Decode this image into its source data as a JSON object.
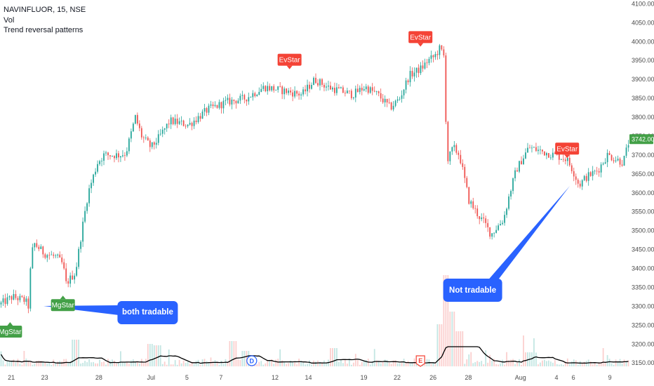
{
  "legend": {
    "symbol": "NAVINFLUOR, 15, NSE",
    "volume": "Vol",
    "indicator": "Trend reversal patterns"
  },
  "colors": {
    "up": "#26a69a",
    "down": "#ef5350",
    "mgstar": "#43a047",
    "evstar": "#f44336",
    "callout": "#2962ff",
    "price_label": "#43a047",
    "volume_ma": "#000000"
  },
  "chart_data": {
    "type": "candlestick",
    "y_ticks": [
      3150,
      3200,
      3250,
      3300,
      3350,
      3400,
      3450,
      3500,
      3550,
      3600,
      3650,
      3700,
      3750,
      3800,
      3850,
      3900,
      3950,
      4000,
      4050,
      4100
    ],
    "y_tick_labels": [
      "3150.00",
      "3200.00",
      "3250.00",
      "3300.00",
      "3350.00",
      "3400.00",
      "3450.00",
      "3500.00",
      "3550.00",
      "3600.00",
      "3650.00",
      "3700.00",
      "3750.00",
      "3800.00",
      "3850.00",
      "3900.00",
      "3950.00",
      "4000.00",
      "4050.00",
      "4100.00"
    ],
    "ylim": [
      3130,
      4110
    ],
    "x_labels": [
      {
        "label": "21",
        "t": 0.018
      },
      {
        "label": "23",
        "t": 0.071
      },
      {
        "label": "28",
        "t": 0.157
      },
      {
        "label": "Jul",
        "t": 0.24
      },
      {
        "label": "5",
        "t": 0.297
      },
      {
        "label": "7",
        "t": 0.351
      },
      {
        "label": "12",
        "t": 0.437
      },
      {
        "label": "14",
        "t": 0.49
      },
      {
        "label": "19",
        "t": 0.578
      },
      {
        "label": "22",
        "t": 0.631
      },
      {
        "label": "26",
        "t": 0.688
      },
      {
        "label": "28",
        "t": 0.744
      },
      {
        "label": "Aug",
        "t": 0.827
      },
      {
        "label": "4",
        "t": 0.884
      },
      {
        "label": "6",
        "t": 0.911
      },
      {
        "label": "9",
        "t": 0.969
      }
    ],
    "price_path": [
      [
        0,
        3305
      ],
      [
        0.02,
        3325
      ],
      [
        0.04,
        3315
      ],
      [
        0.045,
        3300
      ],
      [
        0.05,
        3440
      ],
      [
        0.055,
        3465
      ],
      [
        0.07,
        3440
      ],
      [
        0.09,
        3430
      ],
      [
        0.1,
        3410
      ],
      [
        0.105,
        3360
      ],
      [
        0.12,
        3390
      ],
      [
        0.13,
        3500
      ],
      [
        0.14,
        3600
      ],
      [
        0.155,
        3680
      ],
      [
        0.165,
        3700
      ],
      [
        0.19,
        3700
      ],
      [
        0.2,
        3705
      ],
      [
        0.215,
        3800
      ],
      [
        0.225,
        3750
      ],
      [
        0.24,
        3720
      ],
      [
        0.25,
        3740
      ],
      [
        0.27,
        3790
      ],
      [
        0.3,
        3780
      ],
      [
        0.33,
        3820
      ],
      [
        0.36,
        3840
      ],
      [
        0.39,
        3850
      ],
      [
        0.42,
        3880
      ],
      [
        0.45,
        3870
      ],
      [
        0.48,
        3860
      ],
      [
        0.5,
        3900
      ],
      [
        0.52,
        3880
      ],
      [
        0.54,
        3870
      ],
      [
        0.56,
        3860
      ],
      [
        0.58,
        3880
      ],
      [
        0.6,
        3860
      ],
      [
        0.62,
        3825
      ],
      [
        0.635,
        3850
      ],
      [
        0.65,
        3910
      ],
      [
        0.67,
        3930
      ],
      [
        0.68,
        3950
      ],
      [
        0.69,
        3960
      ],
      [
        0.7,
        3985
      ],
      [
        0.703,
        3965
      ],
      [
        0.706,
        3960
      ],
      [
        0.71,
        3680
      ],
      [
        0.72,
        3720
      ],
      [
        0.73,
        3700
      ],
      [
        0.745,
        3580
      ],
      [
        0.76,
        3540
      ],
      [
        0.77,
        3520
      ],
      [
        0.78,
        3490
      ],
      [
        0.8,
        3530
      ],
      [
        0.81,
        3600
      ],
      [
        0.82,
        3660
      ],
      [
        0.84,
        3720
      ],
      [
        0.86,
        3710
      ],
      [
        0.88,
        3700
      ],
      [
        0.9,
        3690
      ],
      [
        0.91,
        3660
      ],
      [
        0.92,
        3620
      ],
      [
        0.93,
        3640
      ],
      [
        0.95,
        3660
      ],
      [
        0.965,
        3700
      ],
      [
        0.99,
        3680
      ],
      [
        1,
        3742
      ]
    ],
    "last_price": 3742,
    "last_price_label": "3742.00",
    "markers": [
      {
        "label": "MgStar",
        "type": "mgstar",
        "t": 0.016,
        "price": 3260,
        "position": "below"
      },
      {
        "label": "MgStar",
        "type": "mgstar",
        "t": 0.1,
        "price": 3330,
        "position": "below"
      },
      {
        "label": "EvStar",
        "type": "evstar",
        "t": 0.46,
        "price": 3925,
        "position": "above"
      },
      {
        "label": "EvStar",
        "type": "evstar",
        "t": 0.668,
        "price": 3985,
        "position": "above"
      },
      {
        "label": "EvStar",
        "type": "evstar",
        "t": 0.901,
        "price": 3690,
        "position": "above"
      }
    ],
    "annotations": [
      {
        "text": "both tradable",
        "t": 0.19
      },
      {
        "text": "Not tradable",
        "t": 0.8
      }
    ],
    "events": [
      {
        "label": "D",
        "t": 0.4
      },
      {
        "label": "E",
        "t": 0.668
      }
    ]
  }
}
